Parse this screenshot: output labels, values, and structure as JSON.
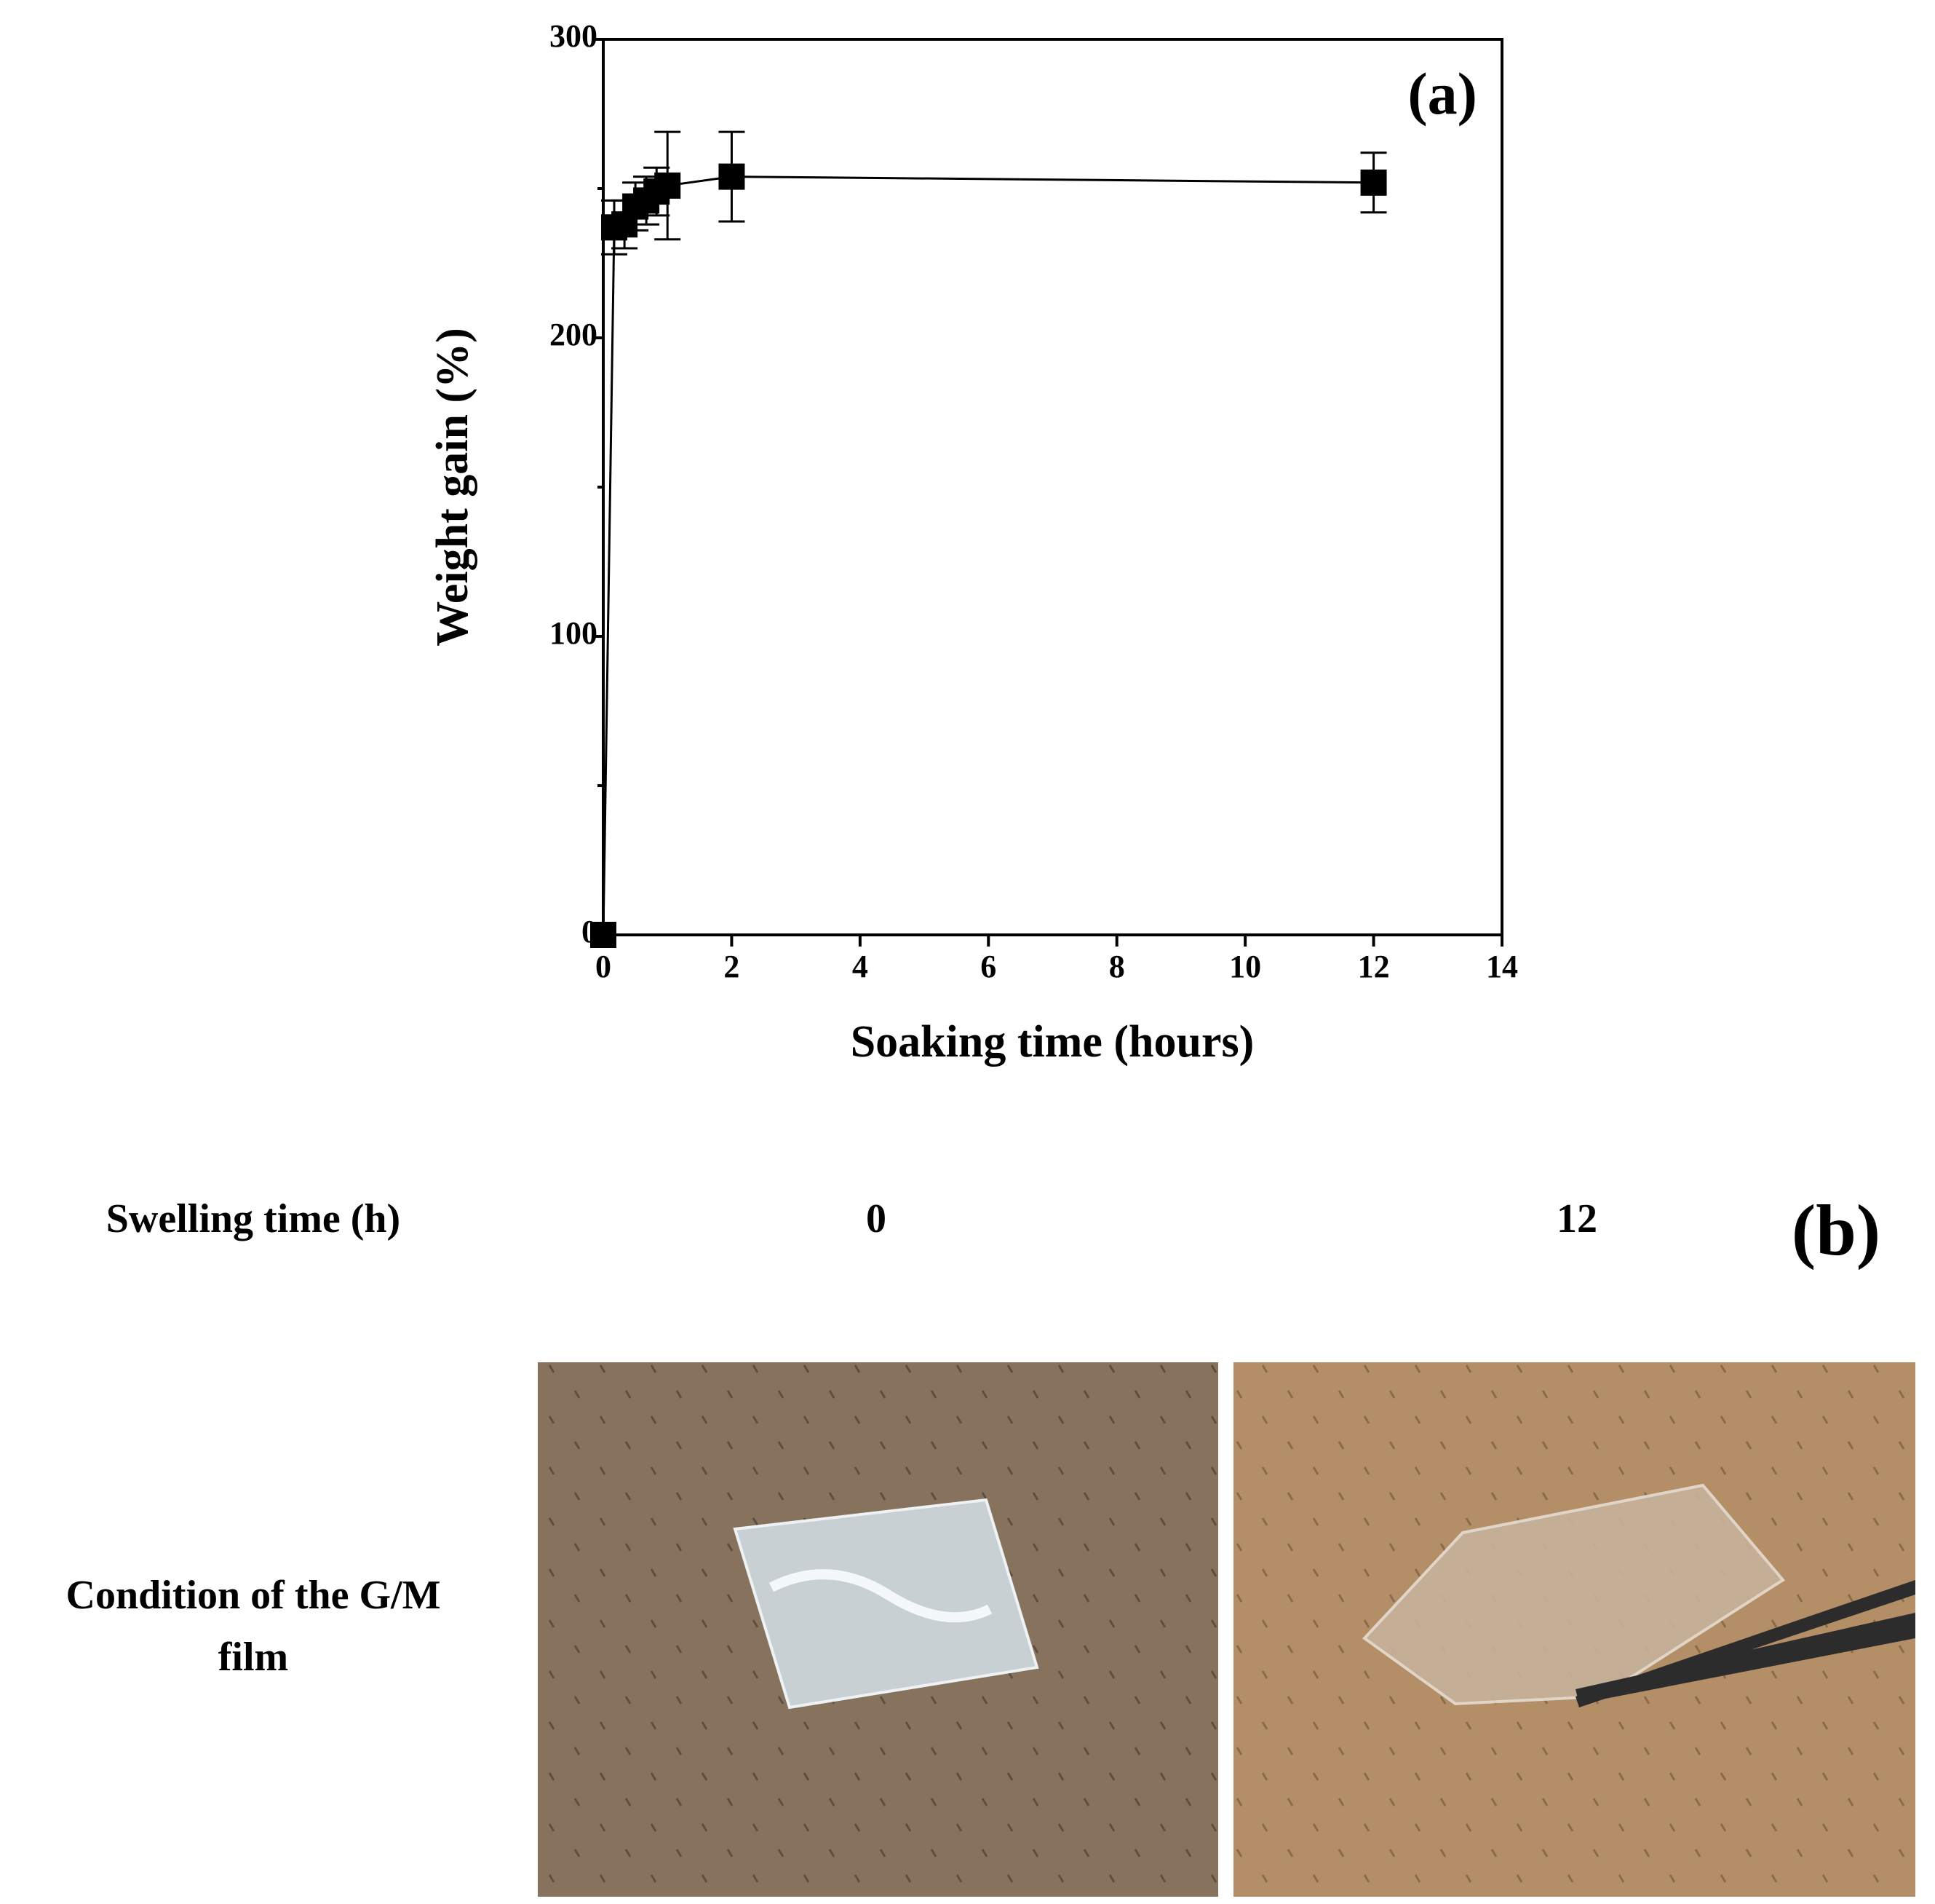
{
  "chart_data": {
    "type": "line",
    "panel_label": "(a)",
    "x_label": "Soaking time (hours)",
    "y_label": "Weight gain (%)",
    "x": [
      0,
      0.17,
      0.33,
      0.5,
      0.67,
      0.83,
      1,
      2,
      12
    ],
    "series": [
      {
        "name": "G/M film",
        "color": "#000000",
        "values": [
          0,
          237,
          238,
          244,
          246,
          249,
          251,
          254,
          252
        ],
        "errors": [
          0,
          9,
          8,
          8,
          8,
          8,
          18,
          15,
          10
        ]
      }
    ],
    "xlim": [
      0,
      14
    ],
    "xticks": [
      0,
      2,
      4,
      6,
      8,
      10,
      12,
      14
    ],
    "ylim": [
      0,
      300
    ],
    "yticks": [
      0,
      100,
      200,
      300
    ],
    "yminor_ticks": [
      50,
      150,
      250
    ],
    "grid": false
  },
  "panel_b": {
    "label": "(b)",
    "row_header": "Swelling time (h)",
    "times": [
      0,
      12
    ],
    "condition_lines": [
      "Condition of the G/M",
      "film"
    ]
  }
}
